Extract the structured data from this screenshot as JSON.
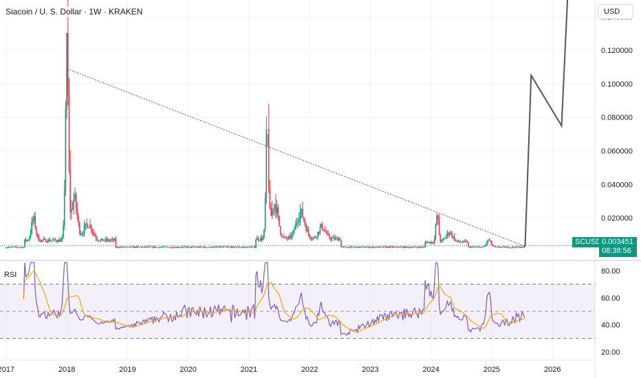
{
  "header": {
    "title": "Siacoin / U. S. Dollar · 1W · KRAKEN"
  },
  "currency_button": {
    "label": "USD"
  },
  "price_badge": {
    "symbol": "SCUSD",
    "price": "0.003451",
    "countdown": "08:38:56"
  },
  "rsi_panel": {
    "label": "RSI"
  },
  "colors": {
    "up": "#089981",
    "down": "#f23645",
    "rsi": "#7e57c2",
    "rsi_ma": "#f7a600",
    "band": "#7e57c2",
    "projection": "#555555"
  },
  "chart_data": [
    {
      "type": "candlestick",
      "x_axis": {
        "ticks": [
          "2017",
          "2018",
          "2019",
          "2020",
          "2021",
          "2022",
          "2023",
          "2024",
          "2025",
          "2026"
        ],
        "range": [
          2016.9,
          2026.7
        ]
      },
      "y_axis": {
        "ticks": [
          "0.020000",
          "0.040000",
          "0.060000",
          "0.080000",
          "0.100000",
          "0.120000",
          "0.140000"
        ],
        "range": [
          -0.005,
          0.15
        ]
      },
      "last_price": 0.003451,
      "key_highs": [
        {
          "x": 2018.0,
          "high": 0.109
        },
        {
          "x": 2021.3,
          "high": 0.063
        },
        {
          "x": 2024.1,
          "high": 0.023
        }
      ],
      "trendline": [
        {
          "x": 2018.0,
          "y": 0.109
        },
        {
          "x": 2025.55,
          "y": 0.003
        }
      ],
      "projection": [
        {
          "x": 2025.55,
          "y": 0.003
        },
        {
          "x": 2025.65,
          "y": 0.105
        },
        {
          "x": 2026.15,
          "y": 0.075
        },
        {
          "x": 2026.25,
          "y": 0.152
        }
      ]
    },
    {
      "type": "line",
      "name": "RSI",
      "y_axis": {
        "ticks": [
          "20.00",
          "40.00",
          "60.00",
          "80.00"
        ],
        "range": [
          15,
          87
        ]
      },
      "levels": [
        70,
        50,
        30
      ]
    }
  ]
}
